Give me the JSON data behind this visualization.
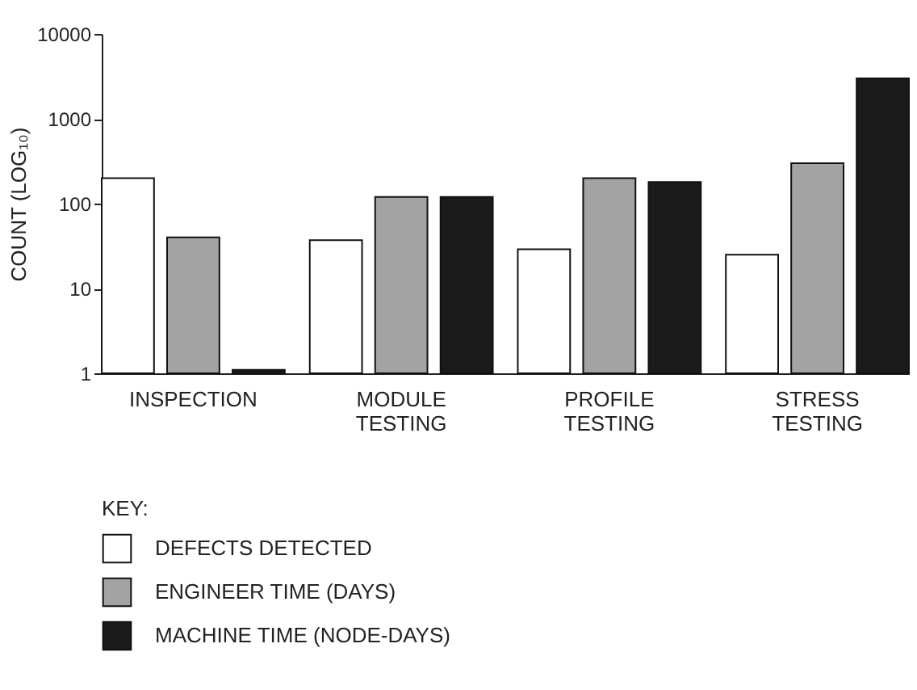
{
  "chart_data": {
    "type": "bar",
    "ylabel": "COUNT (LOG₁₀)",
    "legend_title": "KEY:",
    "categories": [
      "INSPECTION",
      "MODULE TESTING",
      "PROFILE TESTING",
      "STRESS TESTING"
    ],
    "series": [
      {
        "name": "DEFECTS DETECTED",
        "color": "#ffffff",
        "values": [
          200,
          37,
          29,
          25
        ]
      },
      {
        "name": "ENGINEER TIME (DAYS)",
        "color": "#a3a3a3",
        "values": [
          40,
          120,
          200,
          300
        ]
      },
      {
        "name": "MACHINE TIME (NODE-DAYS)",
        "color": "#1a1a1a",
        "values": [
          1.1,
          120,
          180,
          3000
        ]
      }
    ],
    "log": "y",
    "ylim": [
      1,
      10000
    ],
    "yticks": [
      1,
      10,
      100,
      1000,
      10000
    ],
    "grid": false,
    "legend": "bottom"
  }
}
